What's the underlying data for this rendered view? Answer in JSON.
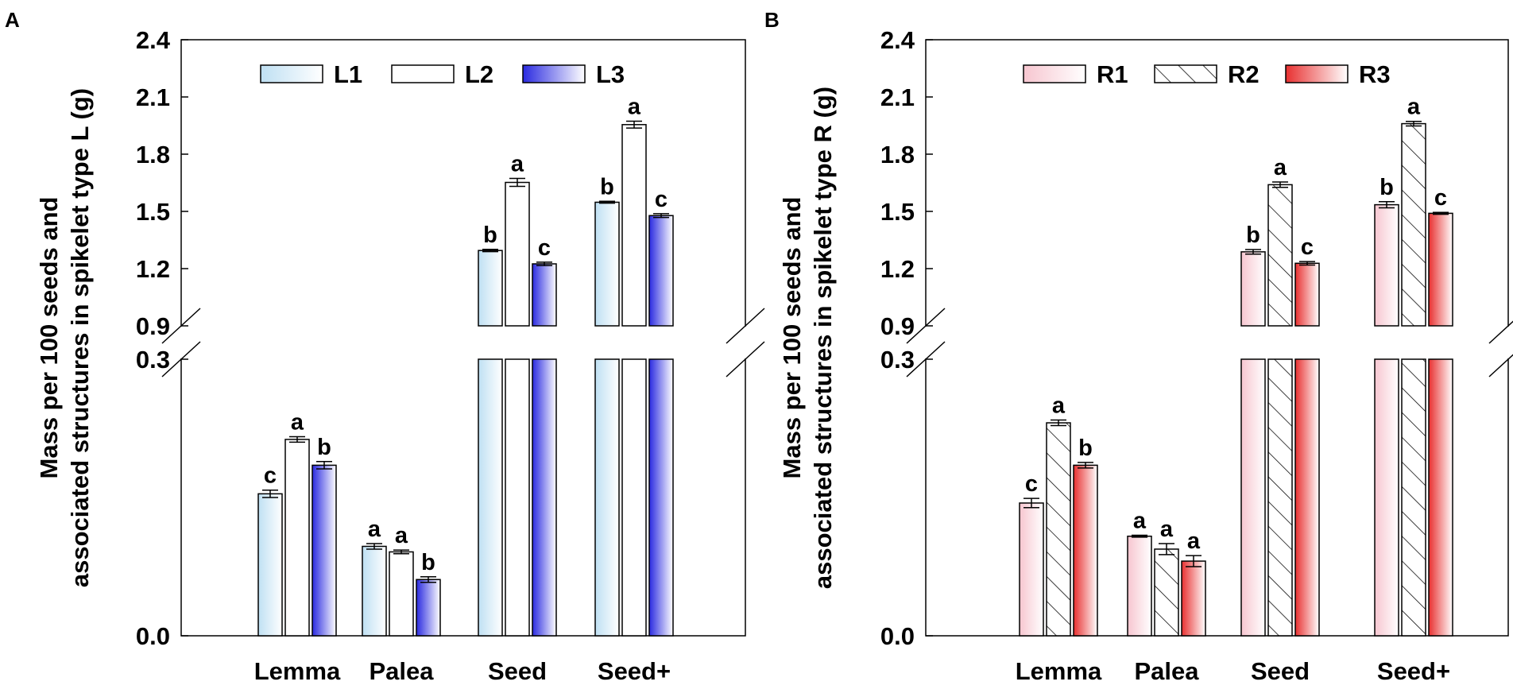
{
  "chart_data": [
    {
      "type": "bar",
      "panel": "A",
      "ylabel_line1": "Mass per 100 seeds and",
      "ylabel_line2": "associated structures in spikelet type L (g)",
      "xlabel": "",
      "categories": [
        "Lemma",
        "Palea",
        "Seed",
        "Seed+"
      ],
      "ylim_lower": [
        0,
        0.3
      ],
      "ylim_upper": [
        0.9,
        2.4
      ],
      "y_ticks_lower": [
        "0.0",
        "0.3"
      ],
      "y_ticks_upper": [
        "0.9",
        "1.2",
        "1.5",
        "1.8",
        "2.1",
        "2.4"
      ],
      "legend_position": "top-right",
      "series": [
        {
          "name": "L1",
          "style": "gradient",
          "color_from": "#bfe0f3",
          "color_to": "#ffffff",
          "values": [
            0.154,
            0.097,
            1.295,
            1.548
          ],
          "errors": [
            0.004,
            0.003,
            0.006,
            0.005
          ],
          "labels": [
            "c",
            "a",
            "b",
            "b"
          ]
        },
        {
          "name": "L2",
          "style": "white",
          "color_from": "#ffffff",
          "color_to": "#ffffff",
          "values": [
            0.213,
            0.091,
            1.652,
            1.955
          ],
          "errors": [
            0.003,
            0.002,
            0.021,
            0.018
          ],
          "labels": [
            "a",
            "a",
            "a",
            "a"
          ]
        },
        {
          "name": "L3",
          "style": "gradient",
          "color_from": "#2a2ae0",
          "color_to": "#ffffff",
          "values": [
            0.185,
            0.061,
            1.225,
            1.478
          ],
          "errors": [
            0.004,
            0.003,
            0.009,
            0.01
          ],
          "labels": [
            "b",
            "b",
            "c",
            "c"
          ]
        }
      ]
    },
    {
      "type": "bar",
      "panel": "B",
      "ylabel_line1": "Mass per 100 seeds and",
      "ylabel_line2": "associated structures in spikelet type R (g)",
      "xlabel": "",
      "categories": [
        "Lemma",
        "Palea",
        "Seed",
        "Seed+"
      ],
      "ylim_lower": [
        0,
        0.3
      ],
      "ylim_upper": [
        0.9,
        2.4
      ],
      "y_ticks_lower": [
        "0.0",
        "0.3"
      ],
      "y_ticks_upper": [
        "0.9",
        "1.2",
        "1.5",
        "1.8",
        "2.1",
        "2.4"
      ],
      "legend_position": "top-right",
      "series": [
        {
          "name": "R1",
          "style": "gradient",
          "color_from": "#f7c6d0",
          "color_to": "#ffffff",
          "values": [
            0.144,
            0.108,
            1.288,
            1.535
          ],
          "errors": [
            0.005,
            0.001,
            0.012,
            0.016
          ],
          "labels": [
            "c",
            "a",
            "b",
            "b"
          ]
        },
        {
          "name": "R2",
          "style": "hatch",
          "color_from": "#ffffff",
          "color_to": "#ffffff",
          "values": [
            0.231,
            0.094,
            1.64,
            1.96
          ],
          "errors": [
            0.003,
            0.006,
            0.014,
            0.012
          ],
          "labels": [
            "a",
            "a",
            "a",
            "a"
          ]
        },
        {
          "name": "R3",
          "style": "gradient",
          "color_from": "#e83030",
          "color_to": "#ffffff",
          "values": [
            0.185,
            0.081,
            1.228,
            1.49
          ],
          "errors": [
            0.003,
            0.006,
            0.009,
            0.005
          ],
          "labels": [
            "b",
            "a",
            "c",
            "c"
          ]
        }
      ]
    }
  ]
}
